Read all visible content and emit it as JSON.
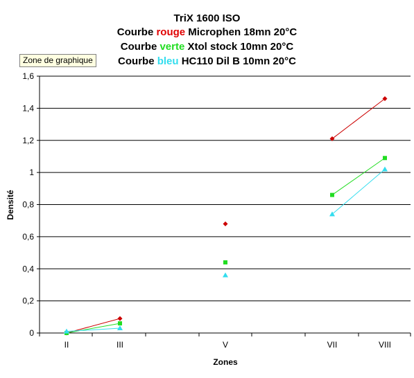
{
  "header": {
    "title_line1": "TriX 1600 ISO",
    "line2": {
      "prefix": "Courbe ",
      "color_word": "rouge",
      "suffix": " Microphen 18mn 20°C"
    },
    "line3": {
      "prefix": "Courbe  ",
      "color_word": "verte",
      "suffix": "  Xtol stock 10mn 20°C"
    },
    "line4": {
      "prefix": "Courbe ",
      "color_word": "bleu",
      "suffix": " HC110 Dil B 10mn 20°C"
    }
  },
  "tooltip": "Zone de graphique",
  "colors": {
    "red": "#cc0000",
    "green": "#22dd22",
    "cyan": "#33ddee",
    "axis": "#000000"
  },
  "chart_data": {
    "type": "line",
    "title": "TriX 1600 ISO",
    "xlabel": "Zones",
    "ylabel": "Densité",
    "ylim": [
      0,
      1.6
    ],
    "ytick_labels": [
      "0",
      "0,2",
      "0,4",
      "0,6",
      "0,8",
      "1",
      "1,2",
      "1,4",
      "1,6"
    ],
    "categories": [
      "II",
      "III",
      "V",
      "VII",
      "VIII"
    ],
    "grid": true,
    "series": [
      {
        "color": "#cc0000",
        "marker": "diamond",
        "values": [
          0.0,
          0.09,
          0.68,
          1.21,
          1.46
        ]
      },
      {
        "color": "#22dd22",
        "marker": "square",
        "values": [
          0.0,
          0.06,
          0.44,
          0.86,
          1.09
        ]
      },
      {
        "color": "#33ddee",
        "marker": "triangle",
        "values": [
          0.01,
          0.03,
          0.36,
          0.74,
          1.02
        ]
      }
    ]
  }
}
